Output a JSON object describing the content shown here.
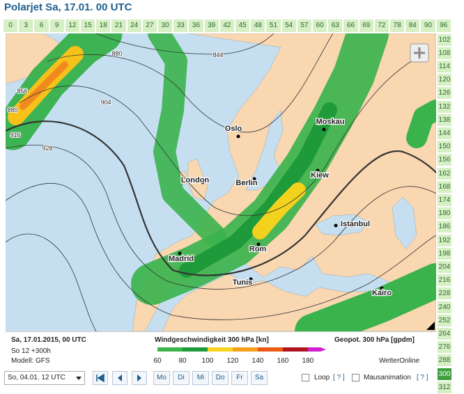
{
  "header": {
    "title": "Polarjet Sa, 17.01. 00 UTC"
  },
  "hours_top": [
    0,
    3,
    6,
    9,
    12,
    15,
    18,
    21,
    24,
    27,
    30,
    33,
    36,
    39,
    42,
    45,
    48,
    51,
    54,
    57,
    60,
    63,
    66,
    69,
    72,
    78,
    84,
    90,
    96
  ],
  "hours_right": [
    102,
    108,
    114,
    120,
    126,
    132,
    138,
    144,
    150,
    156,
    162,
    168,
    174,
    180,
    186,
    192,
    198,
    204,
    216,
    228,
    240,
    252,
    264,
    276,
    288,
    300,
    312
  ],
  "selected_hour": 300,
  "map": {
    "cities": [
      "Oslo",
      "Moskau",
      "Kiew",
      "Berlin",
      "London",
      "Istanbul",
      "Madrid",
      "Rom",
      "Tunis",
      "Kairo"
    ],
    "contour_labels": [
      880,
      844,
      904,
      856,
      880,
      916,
      928
    ]
  },
  "legend": {
    "issued": "Sa, 17.01.2015, 00 UTC",
    "run": "So 12 +300h",
    "model": "Modell: GFS",
    "wind_title": "Windgeschwindigkeit 300 hPa [kn]",
    "wind_ticks": [
      60,
      80,
      100,
      120,
      140,
      160,
      180
    ],
    "geopot_title": "Geopot. 300 hPa [gpdm]",
    "brand": "WetterOnline"
  },
  "controls": {
    "select": "So, 04.01. 12 UTC",
    "days": [
      "Mo",
      "Di",
      "Mi",
      "Do",
      "Fr",
      "Sa"
    ],
    "loop": "Loop",
    "loop_help": "[ ? ]",
    "mouse": "Mausanimation",
    "mouse_help": "[ ? ]"
  }
}
